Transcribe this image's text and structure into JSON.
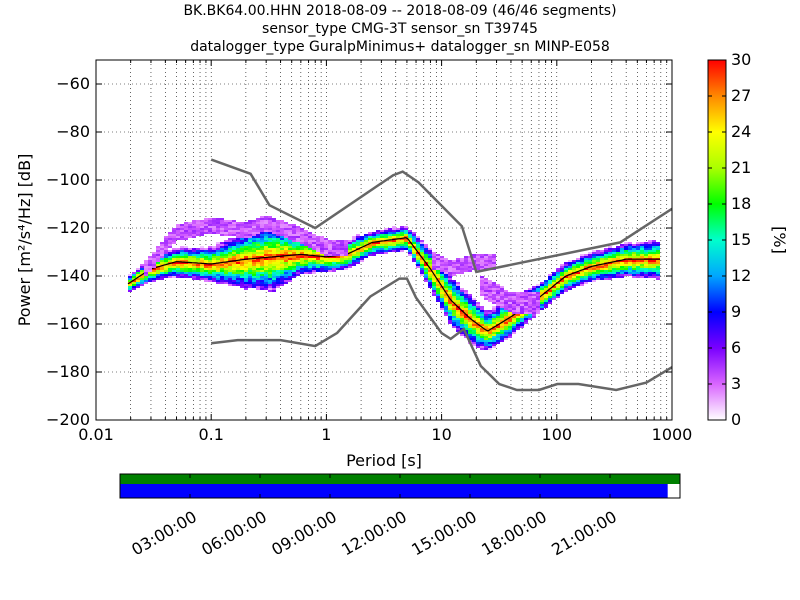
{
  "header": {
    "title_lines": [
      "BK.BK64.00.HHN   2018-08-09 -- 2018-08-09  (46/46 segments)",
      "sensor_type CMG-3T sensor_sn T39745",
      "datalogger_type GuralpMinimus+ datalogger_sn MINP-E058"
    ]
  },
  "chart_data": {
    "type": "heatmap",
    "xlabel": "Period [s]",
    "ylabel": "Power [m²/s⁴/Hz] [dB]",
    "x_scale": "log",
    "xlim": [
      0.01,
      1000
    ],
    "ylim": [
      -200,
      -50
    ],
    "x_ticks": [
      0.01,
      0.1,
      1,
      10,
      100,
      1000
    ],
    "x_tick_labels": [
      "0.01",
      "0.1",
      "1",
      "10",
      "100",
      "1000"
    ],
    "y_ticks": [
      -200,
      -180,
      -160,
      -140,
      -120,
      -100,
      -80,
      -60
    ],
    "grid": "dotted",
    "colorbar": {
      "label": "[%]",
      "range": [
        0,
        30
      ],
      "ticks": [
        0,
        3,
        6,
        9,
        12,
        15,
        18,
        21,
        24,
        27,
        30
      ],
      "colors": [
        "#ffffff",
        "#d966ff",
        "#7a00ff",
        "#0000ff",
        "#00a6ff",
        "#00ffcc",
        "#00ff00",
        "#aaff00",
        "#ffff00",
        "#ff8800",
        "#ff0000"
      ]
    },
    "noise_models": {
      "color": "#666666",
      "high": {
        "period": [
          0.1,
          0.22,
          0.32,
          0.8,
          3.8,
          4.6,
          6.3,
          15,
          20,
          354.8,
          1000
        ],
        "power": [
          -91.5,
          -97.4,
          -110.5,
          -120,
          -98,
          -96.5,
          -101,
          -119.3,
          -138.3,
          -126,
          -112
        ]
      },
      "low": {
        "period": [
          0.1,
          0.17,
          0.4,
          0.8,
          1.24,
          2.4,
          4.3,
          5,
          6,
          10,
          12,
          15.6,
          21.9,
          31.6,
          45,
          70,
          101,
          154,
          328,
          600,
          1000
        ],
        "power": [
          -168,
          -166.7,
          -166.7,
          -169.2,
          -163.7,
          -148.6,
          -141.1,
          -141.1,
          -149,
          -163.8,
          -166.2,
          -162.1,
          -177.5,
          -185,
          -187.5,
          -187.5,
          -185,
          -185,
          -187.5,
          -184.4,
          -178
        ]
      }
    },
    "psd_bands": [
      {
        "name": "main",
        "period": [
          0.018,
          0.03,
          0.05,
          0.1,
          0.2,
          0.35,
          0.6,
          1,
          1.5,
          2.5,
          5,
          8,
          12,
          18,
          25,
          40,
          70,
          120,
          200,
          400,
          800
        ],
        "power": [
          -144,
          -137,
          -134,
          -135,
          -133,
          -132,
          -131,
          -132,
          -131,
          -126,
          -124,
          -137,
          -150,
          -158,
          -163,
          -157,
          -149,
          -140,
          -136,
          -133,
          -133
        ],
        "width": [
          3,
          5,
          6,
          7,
          12,
          14,
          8,
          6,
          6,
          5,
          5,
          8,
          10,
          10,
          8,
          8,
          6,
          6,
          6,
          7,
          8
        ]
      },
      {
        "name": "upper-fringe",
        "period": [
          0.025,
          0.05,
          0.1,
          0.2,
          0.3,
          0.6,
          1,
          1.5
        ],
        "power": [
          -139,
          -122,
          -119,
          -121,
          -118,
          -123,
          -128,
          -128
        ],
        "width": [
          3,
          3,
          3,
          3,
          3,
          3,
          3,
          3
        ]
      },
      {
        "name": "mid-fringe",
        "period": [
          8,
          12,
          20,
          30
        ],
        "power": [
          -133,
          -137,
          -134,
          -134
        ],
        "width": [
          3,
          3,
          3,
          3
        ]
      },
      {
        "name": "lower-fringe",
        "period": [
          20,
          40,
          70
        ],
        "power": [
          -143,
          -151,
          -151
        ],
        "width": [
          4,
          4,
          4
        ]
      }
    ]
  },
  "timeline": {
    "labels": [
      "03:00:00",
      "06:00:00",
      "09:00:00",
      "12:00:00",
      "15:00:00",
      "18:00:00",
      "21:00:00"
    ],
    "hours": [
      3,
      6,
      9,
      12,
      15,
      18,
      21
    ],
    "range_hours": [
      0,
      24
    ],
    "coverage_fraction": 0.978,
    "top_color": "#008000",
    "bottom_color": "#0000ff"
  }
}
